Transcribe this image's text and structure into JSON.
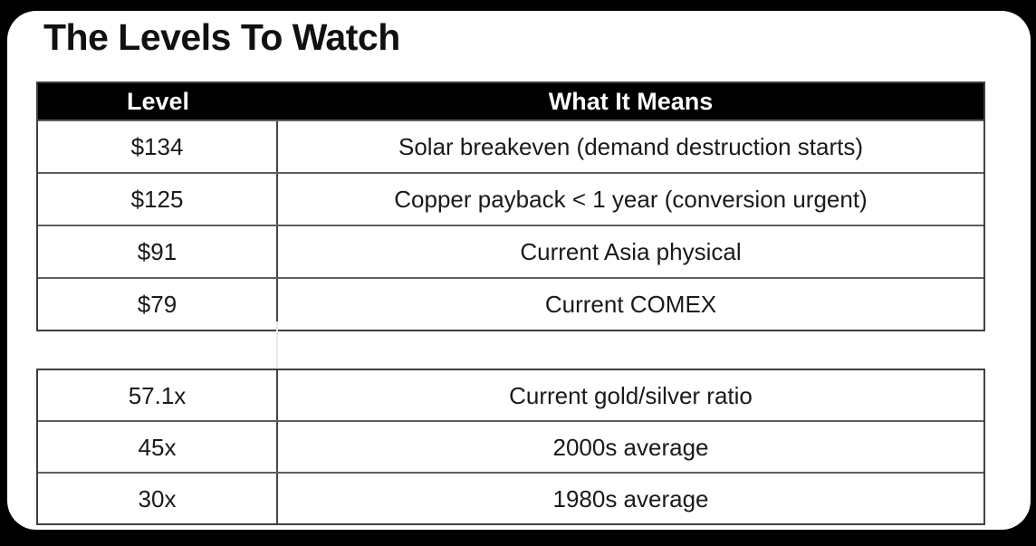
{
  "title": "The Levels To Watch",
  "levels_table": {
    "headers": {
      "level": "Level",
      "meaning": "What It Means"
    },
    "rows": [
      {
        "level": "$134",
        "meaning": "Solar breakeven (demand destruction starts)"
      },
      {
        "level": "$125",
        "meaning": "Copper payback < 1 year (conversion urgent)"
      },
      {
        "level": "$91",
        "meaning": "Current Asia physical"
      },
      {
        "level": "$79",
        "meaning": "Current COMEX"
      }
    ]
  },
  "ratio_table": {
    "rows": [
      {
        "level": "57.1x",
        "meaning": "Current gold/silver ratio"
      },
      {
        "level": "45x",
        "meaning": "2000s average"
      },
      {
        "level": "30x",
        "meaning": "1980s average"
      }
    ]
  },
  "colors": {
    "page_background": "#000000",
    "card_background": "#ffffff",
    "header_background": "#000000",
    "header_text": "#ffffff",
    "body_text": "#1a1a1a",
    "grid_line": "#5e5e5e"
  }
}
